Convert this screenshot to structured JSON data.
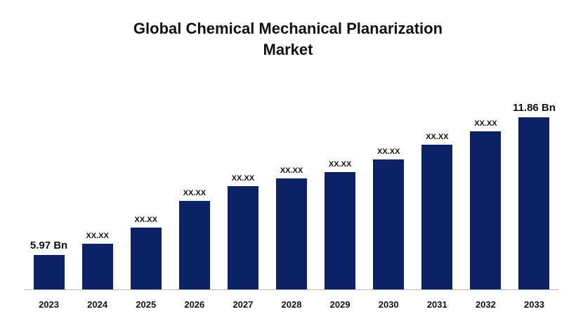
{
  "chart_data": {
    "type": "bar",
    "title": "Global Chemical Mechanical Planarization Market",
    "title_line1": "Global Chemical Mechanical Planarization",
    "title_line2": "Market",
    "categories": [
      "2023",
      "2024",
      "2025",
      "2026",
      "2027",
      "2028",
      "2029",
      "2030",
      "2031",
      "2032",
      "2033"
    ],
    "values": [
      5.97,
      6.46,
      7.14,
      8.27,
      8.92,
      9.25,
      9.5,
      10.05,
      10.69,
      11.25,
      11.86
    ],
    "bar_labels": [
      "5.97 Bn",
      "XX.XX",
      "XX.XX",
      "XX.XX",
      "XX.XX",
      "XX.XX",
      "XX.XX",
      "XX.XX",
      "XX.XX",
      "XX.XX",
      "11.86 Bn"
    ],
    "unit": "Bn",
    "first_value_label": "5.97 Bn",
    "last_value_label": "11.86 Bn",
    "bar_color": "#0b2265",
    "title_color": "#111111",
    "label_color": "#111111",
    "ylim": [
      4.5,
      12
    ],
    "grid": false,
    "legend": false,
    "value_axis_visible": false,
    "xlabel": "",
    "ylabel": ""
  }
}
